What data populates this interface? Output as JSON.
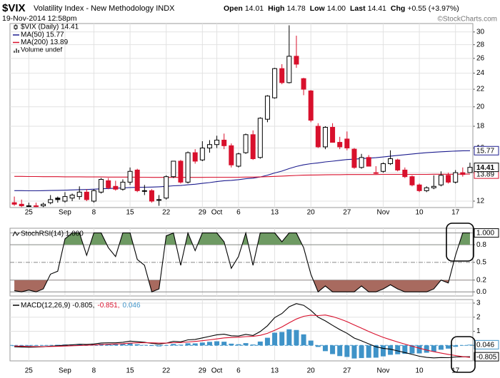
{
  "header": {
    "symbol": "$VIX",
    "name": "Volatility Index - New Methodology INDX",
    "datetime": "19-Nov-2014 12:58pm",
    "quote": [
      {
        "label": "Open",
        "value": "14.01"
      },
      {
        "label": "High",
        "value": "14.78"
      },
      {
        "label": "Low",
        "value": "14.00"
      },
      {
        "label": "Last",
        "value": "14.41"
      },
      {
        "label": "Chg",
        "value": "+0.55 (+3.97%)"
      }
    ],
    "credit": "©StockCharts.com"
  },
  "x_axis": {
    "xlim": [
      -0.6,
      63.4
    ],
    "xticks": [
      {
        "value": 2,
        "label": "25"
      },
      {
        "value": 7,
        "label": "Sep"
      },
      {
        "value": 11,
        "label": "8"
      },
      {
        "value": 16,
        "label": "15"
      },
      {
        "value": 21,
        "label": "22"
      },
      {
        "value": 26,
        "label": "29"
      },
      {
        "value": 28,
        "label": "Oct"
      },
      {
        "value": 31,
        "label": "6"
      },
      {
        "value": 36,
        "label": "13"
      },
      {
        "value": 41,
        "label": "20"
      },
      {
        "value": 46,
        "label": "27"
      },
      {
        "value": 51,
        "label": "Nov"
      },
      {
        "value": 56,
        "label": "10"
      },
      {
        "value": 61,
        "label": "17"
      }
    ]
  },
  "chart_data": [
    {
      "type": "candlestick",
      "log": true,
      "grid": true,
      "ylim": [
        11.59,
        31.4
      ],
      "yticks": [
        12,
        14,
        16,
        18,
        20,
        22,
        24,
        26,
        28,
        30
      ],
      "legend": "$VIX (Daily) 14.41",
      "last_label": "14.41",
      "up_color": "#000000",
      "down_color": "#d8102c",
      "open": [
        11.9,
        11.8,
        11.7,
        11.7,
        11.7,
        11.9,
        12.2,
        12.0,
        12.2,
        12.3,
        12.6,
        12.0,
        12.6,
        13.4,
        13.0,
        12.8,
        13.3,
        14.2,
        12.7,
        12.7,
        12.1,
        12.2,
        13.7,
        14.9,
        13.3,
        15.6,
        15.0,
        16.0,
        16.3,
        16.7,
        16.2,
        14.5,
        15.6,
        17.2,
        15.2,
        18.7,
        21.0,
        24.6,
        22.8,
        26.3,
        23.3,
        21.8,
        18.0,
        16.1,
        17.9,
        16.5,
        16.8,
        15.9,
        14.4,
        15.2,
        14.0,
        14.1,
        14.7,
        15.0,
        14.2,
        13.7,
        13.1,
        12.7,
        12.9,
        13.1,
        13.8,
        13.3,
        14.0,
        14.01
      ],
      "high": [
        12.3,
        12.1,
        11.9,
        11.9,
        11.9,
        12.4,
        12.3,
        12.6,
        12.5,
        13.0,
        12.8,
        12.8,
        13.6,
        13.6,
        13.4,
        13.5,
        14.4,
        14.3,
        13.1,
        12.8,
        12.4,
        13.8,
        14.9,
        15.0,
        15.7,
        15.9,
        16.6,
        16.7,
        17.1,
        17.3,
        16.4,
        15.6,
        17.3,
        17.6,
        18.9,
        21.3,
        24.7,
        25.2,
        31.1,
        29.4,
        23.4,
        21.9,
        18.3,
        18.0,
        18.3,
        17.0,
        17.5,
        16.0,
        15.5,
        15.4,
        14.5,
        14.8,
        15.8,
        15.1,
        14.4,
        13.8,
        13.2,
        13.0,
        13.8,
        14.1,
        14.0,
        14.2,
        14.4,
        14.78
      ],
      "low": [
        11.7,
        11.62,
        11.62,
        11.62,
        11.62,
        11.8,
        11.9,
        11.9,
        12.0,
        12.1,
        12.0,
        11.9,
        12.5,
        12.8,
        12.7,
        12.7,
        13.1,
        12.6,
        12.4,
        11.9,
        11.7,
        12.1,
        13.6,
        13.2,
        13.2,
        14.7,
        14.9,
        15.6,
        16.0,
        15.9,
        14.4,
        14.4,
        15.5,
        15.0,
        15.1,
        18.4,
        20.9,
        22.6,
        22.7,
        24.7,
        21.3,
        18.4,
        16.0,
        15.9,
        16.5,
        15.9,
        15.8,
        14.3,
        14.3,
        14.5,
        13.9,
        14.0,
        14.6,
        14.1,
        13.6,
        13.0,
        12.6,
        12.6,
        12.8,
        13.0,
        13.2,
        13.2,
        13.7,
        14.0
      ],
      "close": [
        11.8,
        11.7,
        11.7,
        11.65,
        11.8,
        12.1,
        12.1,
        12.3,
        12.4,
        12.6,
        12.1,
        12.7,
        13.5,
        12.9,
        12.8,
        13.3,
        14.1,
        12.7,
        12.7,
        12.0,
        12.1,
        13.7,
        14.9,
        13.3,
        15.6,
        14.9,
        16.0,
        16.3,
        16.7,
        16.2,
        14.6,
        15.5,
        17.2,
        15.1,
        18.8,
        21.2,
        24.6,
        22.8,
        26.3,
        25.2,
        22.0,
        18.6,
        16.1,
        17.9,
        16.5,
        16.1,
        16.0,
        14.4,
        15.2,
        14.5,
        14.0,
        14.7,
        15.1,
        14.2,
        13.7,
        13.1,
        12.7,
        12.9,
        13.0,
        13.8,
        13.3,
        14.0,
        13.86,
        14.41
      ],
      "series": [
        {
          "name": "MA(50) 15.77",
          "color": "#1c1c8e",
          "label": "15.77",
          "values": [
            12.7,
            12.7,
            12.69,
            12.69,
            12.7,
            12.71,
            12.72,
            12.73,
            12.75,
            12.77,
            12.78,
            12.8,
            12.83,
            12.85,
            12.87,
            12.89,
            12.92,
            12.93,
            12.94,
            12.95,
            12.97,
            13.0,
            13.04,
            13.06,
            13.11,
            13.15,
            13.21,
            13.27,
            13.34,
            13.4,
            13.43,
            13.48,
            13.55,
            13.59,
            13.68,
            13.81,
            13.98,
            14.12,
            14.31,
            14.48,
            14.61,
            14.7,
            14.76,
            14.84,
            14.9,
            14.97,
            15.03,
            15.06,
            15.11,
            15.14,
            15.18,
            15.24,
            15.31,
            15.37,
            15.43,
            15.49,
            15.55,
            15.6,
            15.64,
            15.68,
            15.71,
            15.74,
            15.76,
            15.77
          ]
        },
        {
          "name": "MA(200) 13.89",
          "color": "#d8102c",
          "label": "13.89",
          "values": [
            13.72,
            13.72,
            13.71,
            13.71,
            13.7,
            13.7,
            13.7,
            13.69,
            13.69,
            13.69,
            13.68,
            13.68,
            13.68,
            13.67,
            13.67,
            13.67,
            13.67,
            13.66,
            13.66,
            13.65,
            13.65,
            13.65,
            13.65,
            13.65,
            13.65,
            13.65,
            13.65,
            13.66,
            13.66,
            13.66,
            13.66,
            13.66,
            13.67,
            13.67,
            13.68,
            13.7,
            13.72,
            13.74,
            13.77,
            13.79,
            13.81,
            13.82,
            13.83,
            13.84,
            13.85,
            13.85,
            13.86,
            13.86,
            13.86,
            13.86,
            13.86,
            13.87,
            13.87,
            13.87,
            13.87,
            13.87,
            13.87,
            13.87,
            13.88,
            13.88,
            13.88,
            13.88,
            13.89,
            13.89
          ]
        }
      ],
      "volume_legend": "Volume undef"
    },
    {
      "type": "stochrsi",
      "ylim": [
        -0.07,
        1.08
      ],
      "yticks": [
        {
          "value": 0,
          "label": "0.0"
        },
        0.2,
        0.5,
        0.8,
        {
          "value": 1,
          "label": "1.0"
        }
      ],
      "overbought": 0.8,
      "oversold": 0.2,
      "legend": "StochRSI(14) 1.000",
      "label": "1.000",
      "color": "#000000",
      "upper_fill": "#6e9a63",
      "lower_fill": "#a86a5f",
      "values": [
        0.02,
        0.0,
        0.03,
        0.0,
        0.05,
        0.3,
        0.35,
        0.9,
        1.0,
        1.0,
        0.62,
        1.0,
        1.0,
        0.75,
        0.6,
        1.0,
        1.0,
        0.55,
        0.45,
        0.0,
        0.05,
        0.95,
        1.0,
        0.45,
        1.0,
        0.7,
        1.0,
        1.0,
        1.0,
        0.85,
        0.4,
        0.6,
        1.0,
        0.45,
        1.0,
        1.0,
        1.0,
        0.85,
        1.0,
        1.0,
        0.75,
        0.3,
        0.0,
        0.1,
        0.0,
        0.0,
        0.0,
        0.0,
        0.1,
        0.0,
        0.0,
        0.05,
        0.12,
        0.05,
        0.0,
        0.0,
        0.0,
        0.0,
        0.05,
        0.2,
        0.15,
        0.62,
        1.0,
        1.0
      ]
    },
    {
      "type": "macd",
      "ylim": [
        -1.1,
        3.25
      ],
      "yticks": [
        0,
        1,
        2,
        3
      ],
      "series": [
        {
          "name": "MACD(12,26,9) -0.805,",
          "color": "#000000",
          "label": "-0.805",
          "values": [
            -0.1,
            -0.12,
            -0.13,
            -0.12,
            -0.1,
            -0.06,
            -0.03,
            0.01,
            0.04,
            0.08,
            0.07,
            0.1,
            0.17,
            0.18,
            0.18,
            0.22,
            0.3,
            0.26,
            0.22,
            0.14,
            0.09,
            0.16,
            0.29,
            0.25,
            0.39,
            0.42,
            0.53,
            0.64,
            0.75,
            0.79,
            0.68,
            0.66,
            0.78,
            0.7,
            0.98,
            1.39,
            1.97,
            2.26,
            2.74,
            2.96,
            2.84,
            2.48,
            2.0,
            1.74,
            1.42,
            1.12,
            0.86,
            0.52,
            0.32,
            0.11,
            -0.1,
            -0.21,
            -0.27,
            -0.39,
            -0.51,
            -0.64,
            -0.77,
            -0.85,
            -0.89,
            -0.86,
            -0.87,
            -0.82,
            -0.81,
            -0.805
          ]
        },
        {
          "name": "-0.851,",
          "color": "#d8102c",
          "values": [
            -0.05,
            -0.06,
            -0.08,
            -0.09,
            -0.09,
            -0.08,
            -0.07,
            -0.05,
            -0.03,
            -0.01,
            0.01,
            0.03,
            0.06,
            0.08,
            0.1,
            0.12,
            0.16,
            0.18,
            0.19,
            0.18,
            0.16,
            0.16,
            0.19,
            0.2,
            0.24,
            0.28,
            0.33,
            0.39,
            0.46,
            0.53,
            0.56,
            0.58,
            0.62,
            0.64,
            0.71,
            0.85,
            1.07,
            1.31,
            1.6,
            1.87,
            2.06,
            2.14,
            2.11,
            2.15,
            2.04,
            1.88,
            1.68,
            1.45,
            1.22,
            0.99,
            0.77,
            0.57,
            0.4,
            0.24,
            0.09,
            -0.06,
            -0.2,
            -0.33,
            -0.45,
            -0.55,
            -0.64,
            -0.72,
            -0.8,
            -0.851
          ]
        },
        {
          "name": "0.046",
          "color": "#3f93c8",
          "kind": "histogram",
          "label": "0.046",
          "values": [
            -0.05,
            -0.06,
            -0.05,
            -0.03,
            -0.01,
            0.02,
            0.04,
            0.06,
            0.07,
            0.09,
            0.06,
            0.07,
            0.11,
            0.1,
            0.08,
            0.1,
            0.14,
            0.08,
            0.03,
            -0.04,
            -0.07,
            0.0,
            0.1,
            0.05,
            0.15,
            0.14,
            0.2,
            0.25,
            0.29,
            0.26,
            0.12,
            0.08,
            0.16,
            0.06,
            0.27,
            0.54,
            0.9,
            0.95,
            1.14,
            1.09,
            0.78,
            0.34,
            -0.11,
            -0.41,
            -0.62,
            -0.76,
            -0.82,
            -0.93,
            -0.9,
            -0.88,
            -0.87,
            -0.78,
            -0.67,
            -0.63,
            -0.6,
            -0.58,
            -0.57,
            -0.52,
            -0.44,
            -0.31,
            -0.23,
            -0.1,
            -0.01,
            0.046
          ]
        }
      ]
    }
  ]
}
